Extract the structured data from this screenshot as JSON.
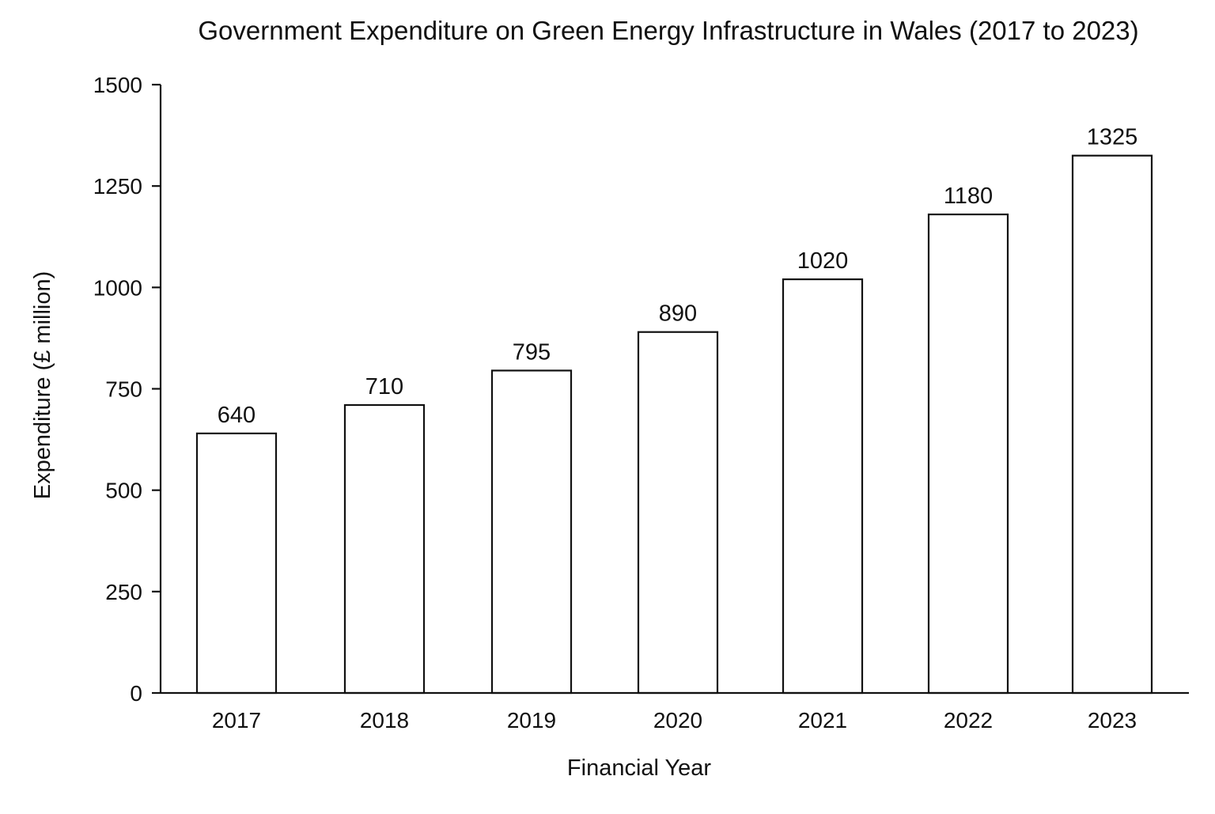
{
  "chart_data": {
    "type": "bar",
    "title": "Government Expenditure on Green Energy Infrastructure in Wales (2017 to 2023)",
    "xlabel": "Financial Year",
    "ylabel": "Expenditure (£ million)",
    "categories": [
      "2017",
      "2018",
      "2019",
      "2020",
      "2021",
      "2022",
      "2023"
    ],
    "values": [
      640,
      710,
      795,
      890,
      1020,
      1180,
      1325
    ],
    "ylim": [
      0,
      1500
    ],
    "yticks": [
      0,
      250,
      500,
      750,
      1000,
      1250,
      1500
    ],
    "grid": false,
    "legend": "none",
    "colors": {
      "bar_fill": "#ffffff",
      "bar_stroke": "#111111",
      "axis": "#111111",
      "text": "#111111",
      "background": "#ffffff"
    }
  }
}
